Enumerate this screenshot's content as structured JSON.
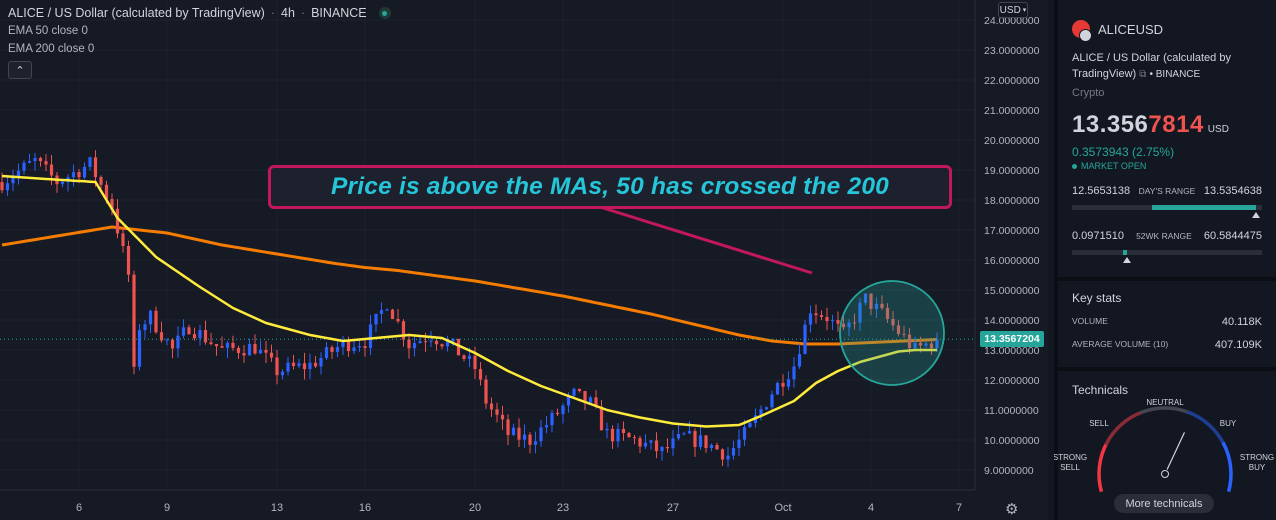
{
  "header": {
    "title": "ALICE / US Dollar (calculated by TradingView)",
    "interval": "4h",
    "exchange": "BINANCE",
    "indicators": [
      "EMA 50 close 0",
      "EMA 200 close 0"
    ],
    "collapse_icon": "chevron-up-icon"
  },
  "currency_select": "USD",
  "annotation": "Price is above the MAs, 50 has crossed the 200",
  "colors": {
    "background": "#161a25",
    "up": "#2962ff",
    "down": "#ef5350",
    "ema50": "#ffeb3b",
    "ema200": "#f57c00",
    "callout": "#c2185b",
    "callout_text": "#26c6da",
    "circle": "#26a69a"
  },
  "chart_data": {
    "type": "candlestick",
    "ylim": [
      8.4,
      24.2
    ],
    "y_ticks": [
      "24.0000000",
      "23.0000000",
      "22.0000000",
      "21.0000000",
      "20.0000000",
      "19.0000000",
      "18.0000000",
      "17.0000000",
      "16.0000000",
      "15.0000000",
      "14.0000000",
      "13.0000000",
      "12.0000000",
      "11.0000000",
      "10.0000000",
      "9.0000000"
    ],
    "y_tick_values": [
      24,
      23,
      22,
      21,
      20,
      19,
      18,
      17,
      16,
      15,
      14,
      13,
      12,
      11,
      10,
      9
    ],
    "x_ticks": [
      "6",
      "9",
      "13",
      "16",
      "20",
      "23",
      "27",
      "Oct",
      "4",
      "7"
    ],
    "x_tick_index": [
      14,
      30,
      50,
      66,
      86,
      102,
      122,
      142,
      158,
      174
    ],
    "last_price": "13.3567204",
    "last_price_value": 13.3567,
    "anchors": [
      [
        0,
        18.6
      ],
      [
        6,
        19.3
      ],
      [
        10,
        18.6
      ],
      [
        16,
        19.2
      ],
      [
        20,
        17.8
      ],
      [
        23,
        15.5
      ],
      [
        24,
        12.2
      ],
      [
        25,
        13.8
      ],
      [
        27,
        14.1
      ],
      [
        31,
        13.0
      ],
      [
        34,
        13.8
      ],
      [
        40,
        13.0
      ],
      [
        46,
        13.1
      ],
      [
        50,
        12.3
      ],
      [
        56,
        12.5
      ],
      [
        62,
        13.2
      ],
      [
        66,
        13.3
      ],
      [
        70,
        14.6
      ],
      [
        74,
        13.2
      ],
      [
        78,
        13.5
      ],
      [
        82,
        13.1
      ],
      [
        86,
        12.4
      ],
      [
        88,
        11.3
      ],
      [
        92,
        10.2
      ],
      [
        96,
        10.0
      ],
      [
        100,
        10.7
      ],
      [
        104,
        11.5
      ],
      [
        107,
        11.2
      ],
      [
        110,
        10.2
      ],
      [
        115,
        10.0
      ],
      [
        120,
        9.6
      ],
      [
        124,
        10.1
      ],
      [
        128,
        9.9
      ],
      [
        132,
        9.5
      ],
      [
        136,
        10.4
      ],
      [
        140,
        11.6
      ],
      [
        144,
        12.5
      ],
      [
        147,
        14.4
      ],
      [
        150,
        14.1
      ],
      [
        153,
        13.5
      ],
      [
        157,
        14.7
      ],
      [
        160,
        14.2
      ],
      [
        163,
        13.6
      ],
      [
        166,
        13.0
      ],
      [
        170,
        13.36
      ]
    ],
    "ema50_anchors": [
      [
        0,
        18.8
      ],
      [
        8,
        18.7
      ],
      [
        17,
        18.6
      ],
      [
        21,
        17.4
      ],
      [
        28,
        16.1
      ],
      [
        36,
        15.1
      ],
      [
        42,
        14.4
      ],
      [
        48,
        13.9
      ],
      [
        56,
        13.5
      ],
      [
        62,
        13.3
      ],
      [
        68,
        13.4
      ],
      [
        74,
        13.5
      ],
      [
        80,
        13.4
      ],
      [
        86,
        12.9
      ],
      [
        92,
        12.3
      ],
      [
        98,
        11.8
      ],
      [
        104,
        11.4
      ],
      [
        110,
        11.0
      ],
      [
        116,
        10.75
      ],
      [
        122,
        10.55
      ],
      [
        128,
        10.45
      ],
      [
        134,
        10.5
      ],
      [
        138,
        10.8
      ],
      [
        144,
        11.3
      ],
      [
        148,
        11.9
      ],
      [
        152,
        12.3
      ],
      [
        156,
        12.6
      ],
      [
        160,
        12.8
      ],
      [
        163,
        12.95
      ],
      [
        166,
        13.0
      ],
      [
        170,
        13.0
      ]
    ],
    "ema200_anchors": [
      [
        0,
        16.5
      ],
      [
        10,
        16.8
      ],
      [
        20,
        17.1
      ],
      [
        30,
        16.9
      ],
      [
        40,
        16.5
      ],
      [
        50,
        16.2
      ],
      [
        60,
        15.9
      ],
      [
        66,
        15.75
      ],
      [
        72,
        15.65
      ],
      [
        78,
        15.5
      ],
      [
        86,
        15.3
      ],
      [
        94,
        15.05
      ],
      [
        102,
        14.8
      ],
      [
        110,
        14.5
      ],
      [
        118,
        14.2
      ],
      [
        126,
        13.85
      ],
      [
        134,
        13.5
      ],
      [
        140,
        13.3
      ],
      [
        146,
        13.2
      ],
      [
        152,
        13.2
      ],
      [
        158,
        13.25
      ],
      [
        164,
        13.3
      ],
      [
        170,
        13.35
      ]
    ]
  },
  "panel": {
    "symbol": "ALICEUSD",
    "flag_icon": "crypto-flag-icon",
    "description": "ALICE / US Dollar (calculated by TradingView)",
    "exchange": "• BINANCE",
    "external_icon": "external-link-icon",
    "category": "Crypto",
    "price_main": "13.356",
    "price_tail": "7814",
    "price_currency": "USD",
    "change": "0.3573943 (2.75%)",
    "market_status": "MARKET OPEN",
    "days_range": {
      "low": "12.5653138",
      "label": "DAY'S RANGE",
      "high": "13.5354638",
      "fill_from": 0.42,
      "fill_to": 0.97,
      "marker": 0.97
    },
    "week52_range": {
      "low": "0.0971510",
      "label": "52WK RANGE",
      "high": "60.5844475",
      "fill_from": 0.27,
      "fill_to": 0.29,
      "marker": 0.29
    },
    "key_stats_title": "Key stats",
    "volume_label": "VOLUME",
    "volume": "40.118K",
    "avg_volume_label": "AVERAGE VOLUME (10)",
    "avg_volume": "407.109K",
    "technicals_title": "Technicals",
    "gauge_labels": {
      "strong_sell": "STRONG\nSELL",
      "sell": "SELL",
      "neutral": "NEUTRAL",
      "buy": "BUY",
      "strong_buy": "STRONG\nBUY"
    },
    "gauge_value": 0.62,
    "more_button": "More technicals"
  }
}
